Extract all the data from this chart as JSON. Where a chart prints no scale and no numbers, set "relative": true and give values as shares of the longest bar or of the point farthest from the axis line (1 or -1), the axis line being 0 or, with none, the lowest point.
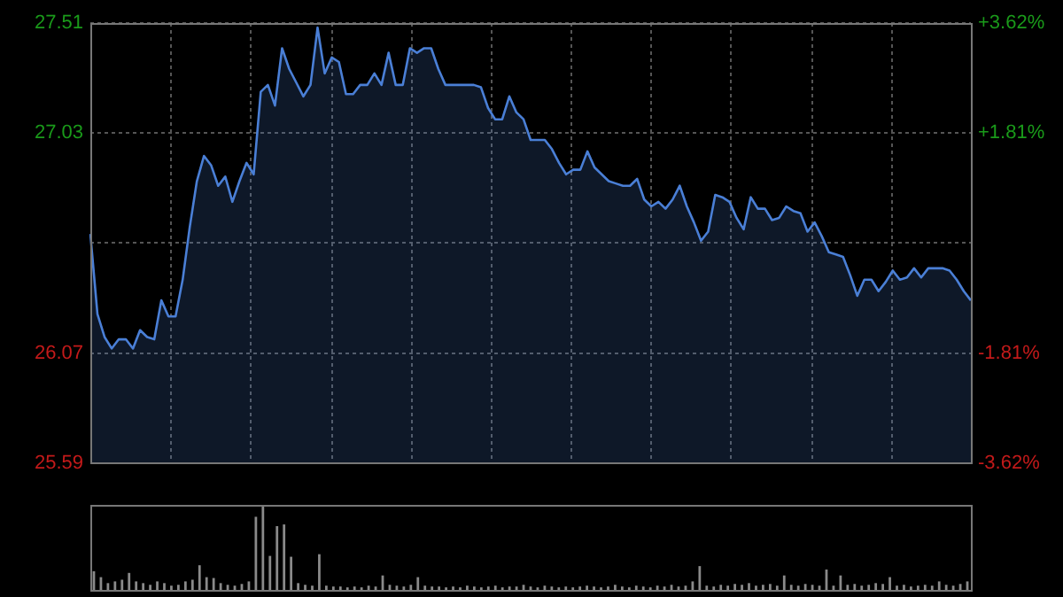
{
  "chart_data": [
    {
      "type": "area",
      "categories": [
        null,
        null,
        null,
        null,
        null,
        null,
        null,
        null,
        null,
        null,
        null,
        null,
        null,
        null,
        null,
        null,
        null,
        null,
        null,
        null,
        null,
        null,
        null,
        null,
        null,
        null,
        null,
        null,
        null,
        null,
        null,
        null,
        null,
        null,
        null,
        null,
        null,
        null,
        null,
        null,
        null,
        null,
        null,
        null,
        null,
        null,
        null,
        null,
        null,
        null,
        null,
        null,
        null,
        null,
        null,
        null,
        null,
        null,
        null,
        null,
        null,
        null,
        null,
        null,
        null,
        null,
        null,
        null,
        null,
        null,
        null,
        null,
        null,
        null,
        null,
        null,
        null,
        null,
        null,
        null,
        null,
        null,
        null,
        null,
        null,
        null,
        null,
        null,
        null,
        null,
        null,
        null,
        null,
        null,
        null,
        null,
        null,
        null,
        null,
        null,
        null,
        null,
        null,
        null,
        null,
        null,
        null,
        null,
        null,
        null,
        null,
        null,
        null,
        null,
        null,
        null,
        null,
        null,
        null,
        null,
        null,
        null,
        null,
        null,
        null
      ],
      "series": [
        {
          "color": "#4a7fd6",
          "values": [
            26.59,
            26.24,
            26.14,
            26.09,
            26.13,
            26.13,
            26.09,
            26.17,
            26.14,
            26.13,
            26.3,
            26.23,
            26.23,
            26.39,
            26.62,
            26.82,
            26.93,
            26.89,
            26.8,
            26.84,
            26.73,
            26.82,
            26.9,
            26.85,
            27.21,
            27.24,
            27.15,
            27.4,
            27.31,
            27.25,
            27.19,
            27.24,
            27.49,
            27.29,
            27.36,
            27.34,
            27.2,
            27.2,
            27.24,
            27.24,
            27.29,
            27.24,
            27.38,
            27.24,
            27.24,
            27.4,
            27.38,
            27.4,
            27.4,
            27.31,
            27.24,
            27.24,
            27.24,
            27.24,
            27.24,
            27.23,
            27.14,
            27.09,
            27.09,
            27.19,
            27.12,
            27.09,
            27.0,
            27.0,
            27.0,
            26.96,
            26.9,
            26.85,
            26.87,
            26.87,
            26.95,
            26.88,
            26.85,
            26.82,
            26.81,
            26.8,
            26.8,
            26.83,
            26.74,
            26.71,
            26.73,
            26.7,
            26.74,
            26.8,
            26.71,
            26.64,
            26.56,
            26.6,
            26.76,
            26.75,
            26.73,
            26.66,
            26.61,
            26.75,
            26.7,
            26.7,
            26.65,
            26.66,
            26.71,
            26.69,
            26.68,
            26.6,
            26.64,
            26.58,
            26.51,
            26.5,
            26.49,
            26.41,
            26.32,
            26.39,
            26.39,
            26.34,
            26.38,
            26.43,
            26.39,
            26.4,
            26.44,
            26.4,
            26.44,
            26.44,
            26.44,
            26.43,
            26.39,
            26.34,
            26.3
          ]
        }
      ],
      "ylim": [
        25.59,
        27.51
      ],
      "yticks": [
        25.59,
        26.07,
        {
          "value": 26.55,
          "label": null
        },
        27.03,
        27.51
      ],
      "y2lim": [
        -3.62,
        3.62
      ],
      "y2ticks": [
        {
          "value": -3.62,
          "label": "-3.62%"
        },
        {
          "value": -1.81,
          "label": "-1.81%"
        },
        {
          "value": 0,
          "label": null
        },
        {
          "value": 1.81,
          "label": "+1.81%"
        },
        {
          "value": 3.62,
          "label": "+3.62%"
        }
      ],
      "grid": true,
      "legend": false,
      "marker": "none",
      "line_style": "solid"
    },
    {
      "type": "bar",
      "relative": true,
      "categories": [
        null,
        null,
        null,
        null,
        null,
        null,
        null,
        null,
        null,
        null,
        null,
        null,
        null,
        null,
        null,
        null,
        null,
        null,
        null,
        null,
        null,
        null,
        null,
        null,
        null,
        null,
        null,
        null,
        null,
        null,
        null,
        null,
        null,
        null,
        null,
        null,
        null,
        null,
        null,
        null,
        null,
        null,
        null,
        null,
        null,
        null,
        null,
        null,
        null,
        null,
        null,
        null,
        null,
        null,
        null,
        null,
        null,
        null,
        null,
        null,
        null,
        null,
        null,
        null,
        null,
        null,
        null,
        null,
        null,
        null,
        null,
        null,
        null,
        null,
        null,
        null,
        null,
        null,
        null,
        null,
        null,
        null,
        null,
        null,
        null,
        null,
        null,
        null,
        null,
        null,
        null,
        null,
        null,
        null,
        null,
        null,
        null,
        null,
        null,
        null,
        null,
        null,
        null,
        null,
        null,
        null,
        null,
        null,
        null,
        null,
        null,
        null,
        null,
        null,
        null,
        null,
        null,
        null,
        null,
        null,
        null,
        null,
        null,
        null,
        null
      ],
      "color": "#8a8a8a",
      "values": [
        0.22,
        0.15,
        0.08,
        0.1,
        0.12,
        0.2,
        0.1,
        0.08,
        0.06,
        0.1,
        0.08,
        0.05,
        0.06,
        0.1,
        0.12,
        0.29,
        0.15,
        0.14,
        0.08,
        0.06,
        0.05,
        0.07,
        0.1,
        0.86,
        1,
        0.4,
        0.75,
        0.77,
        0.39,
        0.08,
        0.06,
        0.05,
        0.42,
        0.05,
        0.04,
        0.04,
        0.03,
        0.04,
        0.03,
        0.05,
        0.04,
        0.17,
        0.06,
        0.05,
        0.04,
        0.06,
        0.15,
        0.05,
        0.04,
        0.04,
        0.03,
        0.04,
        0.03,
        0.05,
        0.04,
        0.03,
        0.04,
        0.05,
        0.03,
        0.04,
        0.04,
        0.06,
        0.04,
        0.03,
        0.05,
        0.04,
        0.03,
        0.04,
        0.03,
        0.04,
        0.05,
        0.04,
        0.03,
        0.04,
        0.06,
        0.04,
        0.03,
        0.05,
        0.04,
        0.03,
        0.05,
        0.04,
        0.06,
        0.04,
        0.05,
        0.1,
        0.28,
        0.05,
        0.04,
        0.06,
        0.05,
        0.07,
        0.06,
        0.08,
        0.05,
        0.06,
        0.07,
        0.05,
        0.17,
        0.06,
        0.05,
        0.07,
        0.06,
        0.05,
        0.24,
        0.05,
        0.17,
        0.06,
        0.07,
        0.05,
        0.06,
        0.08,
        0.07,
        0.15,
        0.05,
        0.06,
        0.04,
        0.05,
        0.06,
        0.05,
        0.1,
        0.06,
        0.05,
        0.07,
        0.1
      ],
      "grid": false,
      "legend": false
    }
  ]
}
